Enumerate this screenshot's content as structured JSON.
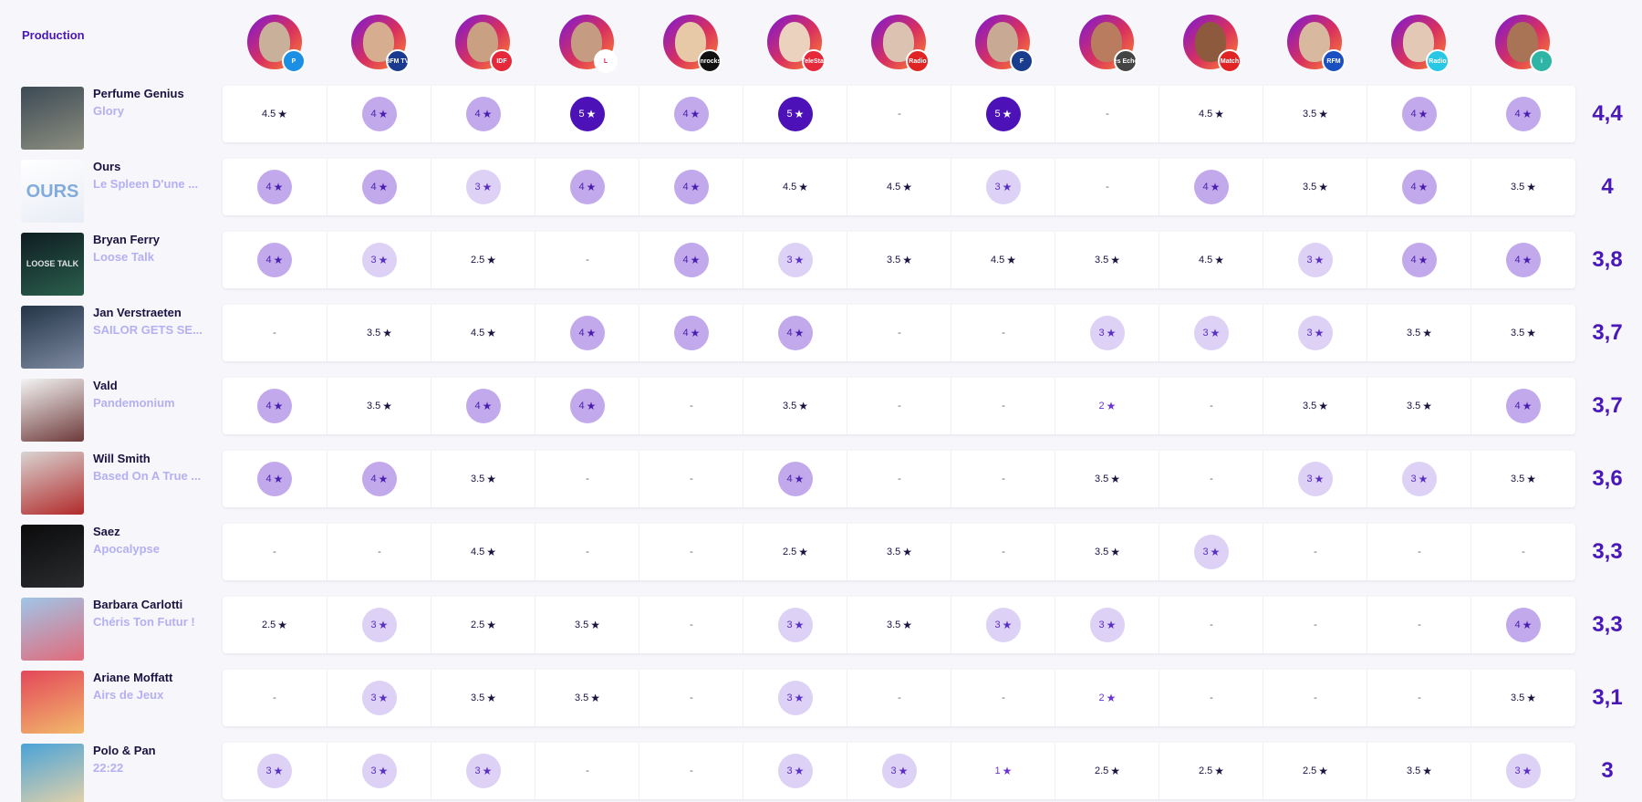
{
  "section_title": "Production",
  "critics": [
    {
      "badge": "P",
      "badge_color": "#1a8fe3",
      "face": "#c9b09a"
    },
    {
      "badge": "BFM TV.",
      "badge_color": "#1b3a8f",
      "face": "#d6ad8f"
    },
    {
      "badge": "IDF",
      "badge_color": "#e5293b",
      "face": "#caa083"
    },
    {
      "badge": "L",
      "badge_color": "#ffffff",
      "face": "#c59c82"
    },
    {
      "badge": "Inrocks",
      "badge_color": "#111111",
      "face": "#e7c9a8"
    },
    {
      "badge": "TeleStar",
      "badge_color": "#e5293b",
      "face": "#ead2bf"
    },
    {
      "badge": "Radio",
      "badge_color": "#e02424",
      "face": "#dcc3b1"
    },
    {
      "badge": "F",
      "badge_color": "#1a3c8c",
      "face": "#c8a994"
    },
    {
      "badge": "Les Echos",
      "badge_color": "#444444",
      "face": "#b97c5f"
    },
    {
      "badge": "Match",
      "badge_color": "#e02424",
      "face": "#8e5a3d"
    },
    {
      "badge": "RFM",
      "badge_color": "#1a4fc2",
      "face": "#d8b89e"
    },
    {
      "badge": "Radio",
      "badge_color": "#29c7e6",
      "face": "#e3c8b5"
    },
    {
      "badge": "i",
      "badge_color": "#2fb5a6",
      "face": "#a97456"
    }
  ],
  "albums": [
    {
      "artist": "Perfume Genius",
      "album": "Glory",
      "avg": "4,4",
      "cover_colors": [
        "#3c4a55",
        "#8d8f80"
      ],
      "cover_text": "",
      "scores": [
        "4.5",
        "4",
        "4",
        "5",
        "4",
        "5",
        "-",
        "5",
        "-",
        "4.5",
        "3.5",
        "4",
        "4"
      ]
    },
    {
      "artist": "Ours",
      "album": "Le Spleen D'une ...",
      "avg": "4",
      "cover_colors": [
        "#ffffff",
        "#e8ecf5"
      ],
      "cover_text": "OURS",
      "scores": [
        "4",
        "4",
        "3",
        "4",
        "4",
        "4.5",
        "4.5",
        "3",
        "-",
        "4",
        "3.5",
        "4",
        "3.5"
      ]
    },
    {
      "artist": "Bryan Ferry",
      "album": "Loose Talk",
      "avg": "3,8",
      "cover_colors": [
        "#0f1d22",
        "#2a5f4c"
      ],
      "cover_text": "LOOSE TALK",
      "scores": [
        "4",
        "3",
        "2.5",
        "-",
        "4",
        "3",
        "3.5",
        "4.5",
        "3.5",
        "4.5",
        "3",
        "4",
        "4"
      ]
    },
    {
      "artist": "Jan Verstraeten",
      "album": "SAILOR GETS SE...",
      "avg": "3,7",
      "cover_colors": [
        "#243548",
        "#7e8aa0"
      ],
      "cover_text": "",
      "scores": [
        "-",
        "3.5",
        "4.5",
        "4",
        "4",
        "4",
        "-",
        "-",
        "3",
        "3",
        "3",
        "3.5",
        "3.5"
      ]
    },
    {
      "artist": "Vald",
      "album": "Pandemonium",
      "avg": "3,7",
      "cover_colors": [
        "#f4f4f4",
        "#6e3a3a"
      ],
      "cover_text": "",
      "scores": [
        "4",
        "3.5",
        "4",
        "4",
        "-",
        "3.5",
        "-",
        "-",
        "2",
        "-",
        "3.5",
        "3.5",
        "4"
      ]
    },
    {
      "artist": "Will Smith",
      "album": "Based On A True ...",
      "avg": "3,6",
      "cover_colors": [
        "#d8d4d2",
        "#b22a2a"
      ],
      "cover_text": "",
      "scores": [
        "4",
        "4",
        "3.5",
        "-",
        "-",
        "4",
        "-",
        "-",
        "3.5",
        "-",
        "3",
        "3",
        "3.5"
      ]
    },
    {
      "artist": "Saez",
      "album": "Apocalypse",
      "avg": "3,3",
      "cover_colors": [
        "#0b0b0c",
        "#2a2c2e"
      ],
      "cover_text": "",
      "scores": [
        "-",
        "-",
        "4.5",
        "-",
        "-",
        "2.5",
        "3.5",
        "-",
        "3.5",
        "3",
        "-",
        "-",
        "-"
      ]
    },
    {
      "artist": "Barbara Carlotti",
      "album": "Chéris Ton Futur !",
      "avg": "3,3",
      "cover_colors": [
        "#9fc6e8",
        "#e26a7a"
      ],
      "cover_text": "",
      "scores": [
        "2.5",
        "3",
        "2.5",
        "3.5",
        "-",
        "3",
        "3.5",
        "3",
        "3",
        "-",
        "-",
        "-",
        "4"
      ]
    },
    {
      "artist": "Ariane Moffatt",
      "album": "Airs de Jeux",
      "avg": "3,1",
      "cover_colors": [
        "#e3475a",
        "#f2b96b"
      ],
      "cover_text": "",
      "scores": [
        "-",
        "3",
        "3.5",
        "3.5",
        "-",
        "3",
        "-",
        "-",
        "2",
        "-",
        "-",
        "-",
        "3.5"
      ]
    },
    {
      "artist": "Polo & Pan",
      "album": "22:22",
      "avg": "3",
      "cover_colors": [
        "#4aa3d8",
        "#e8d3a8"
      ],
      "cover_text": "",
      "scores": [
        "3",
        "3",
        "3",
        "-",
        "-",
        "3",
        "3",
        "1",
        "2.5",
        "2.5",
        "2.5",
        "3.5",
        "3"
      ]
    }
  ]
}
